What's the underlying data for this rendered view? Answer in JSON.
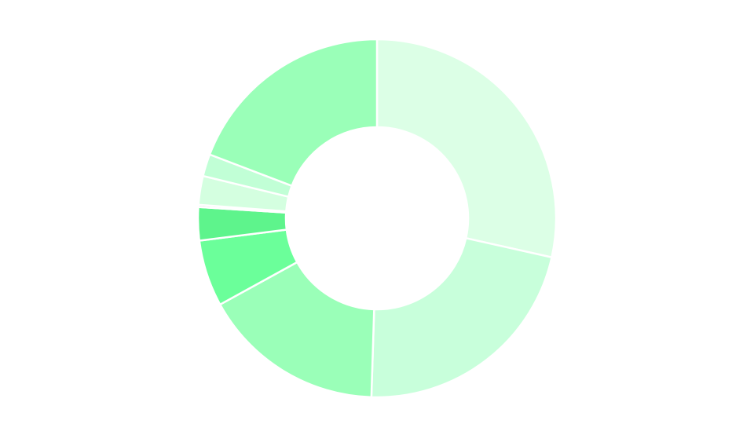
{
  "chart_data": {
    "type": "pie",
    "variant": "donut",
    "title": "",
    "legend": "none",
    "data_labels": "none",
    "start_angle_deg": 0,
    "direction": "clockwise",
    "slices": [
      {
        "value": 28.5,
        "color": "#dcffe6"
      },
      {
        "value": 22.0,
        "color": "#c8ffdb"
      },
      {
        "value": 16.5,
        "color": "#9affb8"
      },
      {
        "value": 6.0,
        "color": "#6bff9a"
      },
      {
        "value": 3.0,
        "color": "#5ef48c"
      },
      {
        "value": 0.2,
        "color": "#c7c7c7"
      },
      {
        "value": 2.6,
        "color": "#d4ffe0"
      },
      {
        "value": 2.0,
        "color": "#c1ffd6"
      },
      {
        "value": 19.2,
        "color": "#9affb8"
      }
    ]
  }
}
